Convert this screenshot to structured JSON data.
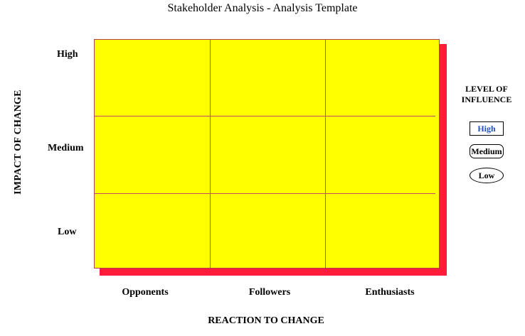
{
  "title": "Stakeholder Analysis - Analysis Template",
  "rows": [
    "High",
    "Medium",
    "Low"
  ],
  "columns": [
    "Opponents",
    "Followers",
    "Enthusiasts"
  ],
  "x_axis_label": "REACTION TO CHANGE",
  "y_axis_label": "IMPACT OF CHANGE",
  "legend": {
    "title_line1": "LEVEL OF",
    "title_line2": "INFLUENCE",
    "items": [
      "High",
      "Medium",
      "Low"
    ]
  },
  "colors": {
    "grid_fill": "#ffff00",
    "shadow": "#ff1b3a",
    "grid_lines": "#c04a6a",
    "legend_high_text": "#1f4fbf"
  }
}
